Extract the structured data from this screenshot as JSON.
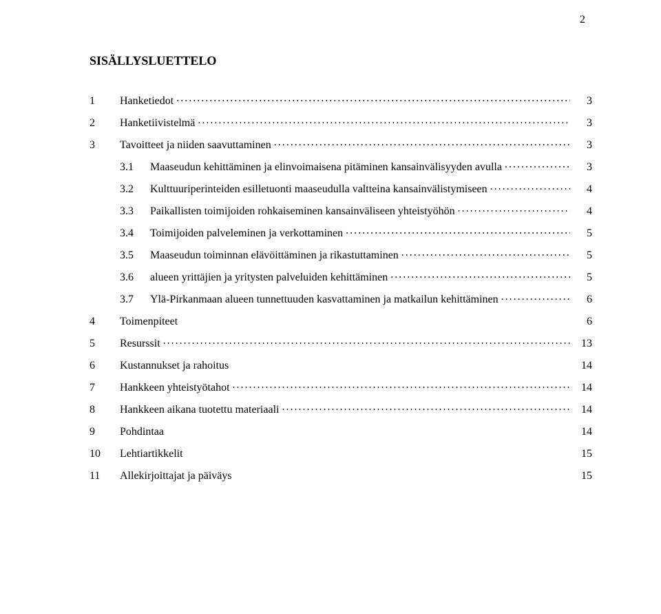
{
  "page_number": "2",
  "title": "SISÄLLYSLUETTELO",
  "font_family": "Times New Roman",
  "entries": [
    {
      "level": 1,
      "num": "1",
      "text": "Hanketiedot",
      "page": "3",
      "dotted": true
    },
    {
      "level": 1,
      "num": "2",
      "text": "Hanketiivistelmä",
      "page": "3",
      "dotted": true
    },
    {
      "level": 1,
      "num": "3",
      "text": "Tavoitteet ja niiden saavuttaminen",
      "page": "3",
      "dotted": true
    },
    {
      "level": 2,
      "num": "3.1",
      "text": "Maaseudun kehittäminen ja elinvoimaisena pitäminen kansainvälisyyden avulla",
      "page": "3",
      "dotted": true
    },
    {
      "level": 2,
      "num": "3.2",
      "text": "Kulttuuriperinteiden esilletuonti maaseudulla valtteina kansainvälistymiseen",
      "page": "4",
      "dotted": true
    },
    {
      "level": 2,
      "num": "3.3",
      "text": "Paikallisten toimijoiden rohkaiseminen kansainväliseen yhteistyöhön",
      "page": "4",
      "dotted": true
    },
    {
      "level": 2,
      "num": "3.4",
      "text": "Toimijoiden palveleminen ja verkottaminen",
      "page": "5",
      "dotted": true
    },
    {
      "level": 2,
      "num": "3.5",
      "text": "Maaseudun toiminnan elävöittäminen ja rikastuttaminen",
      "page": "5",
      "dotted": true
    },
    {
      "level": 2,
      "num": "3.6",
      "text": "alueen yrittäjien ja yritysten palveluiden kehittäminen",
      "page": "5",
      "dotted": true
    },
    {
      "level": 2,
      "num": "3.7",
      "text": "Ylä-Pirkanmaan alueen tunnettuuden kasvattaminen ja matkailun kehittäminen",
      "page": "6",
      "dotted": true
    },
    {
      "level": 1,
      "num": "4",
      "text": "Toimenpiteet",
      "page": "6",
      "dotted": false
    },
    {
      "level": 1,
      "num": "5",
      "text": "Resurssit",
      "page": "13",
      "dotted": true
    },
    {
      "level": 1,
      "num": "6",
      "text": "Kustannukset ja rahoitus",
      "page": "14",
      "dotted": false
    },
    {
      "level": 1,
      "num": "7",
      "text": "Hankkeen yhteistyötahot",
      "page": "14",
      "dotted": true
    },
    {
      "level": 1,
      "num": "8",
      "text": "Hankkeen aikana tuotettu materiaali",
      "page": "14",
      "dotted": true
    },
    {
      "level": 1,
      "num": "9",
      "text": "Pohdintaa",
      "page": "14",
      "dotted": false
    },
    {
      "level": 1,
      "num": "10",
      "text": "Lehtiartikkelit",
      "page": "15",
      "dotted": false
    },
    {
      "level": 1,
      "num": "11",
      "text": "Allekirjoittajat ja päiväys",
      "page": "15",
      "dotted": false
    }
  ]
}
